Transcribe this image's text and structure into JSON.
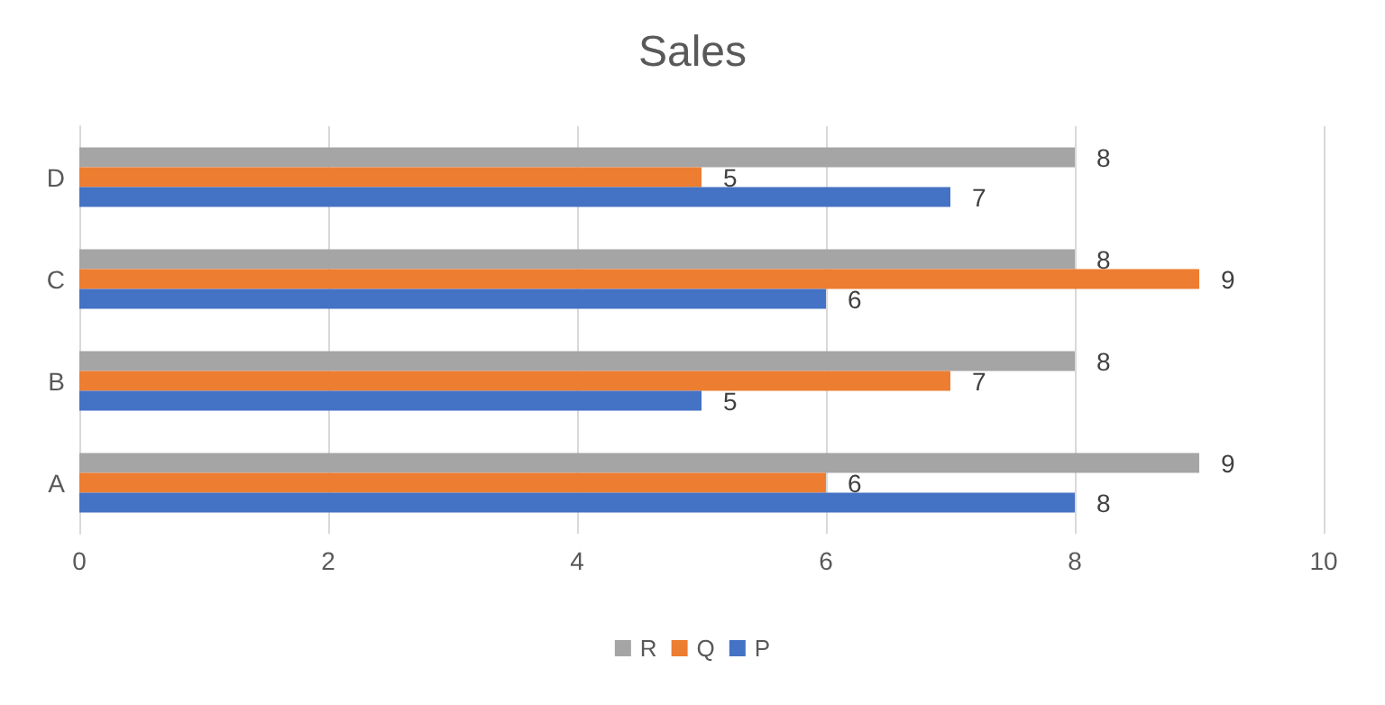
{
  "chart_data": {
    "type": "bar",
    "title": "Sales",
    "orientation": "horizontal",
    "categories": [
      "D",
      "C",
      "B",
      "A"
    ],
    "series": [
      {
        "name": "R",
        "color": "#a5a5a5",
        "values": [
          8,
          8,
          8,
          9
        ]
      },
      {
        "name": "Q",
        "color": "#ed7d31",
        "values": [
          5,
          9,
          7,
          6
        ]
      },
      {
        "name": "P",
        "color": "#4472c4",
        "values": [
          7,
          6,
          5,
          8
        ]
      }
    ],
    "xlim": [
      0,
      10
    ],
    "xticks": [
      0,
      2,
      4,
      6,
      8,
      10
    ],
    "grid": "x",
    "legend": "bottom",
    "data_labels": true
  }
}
